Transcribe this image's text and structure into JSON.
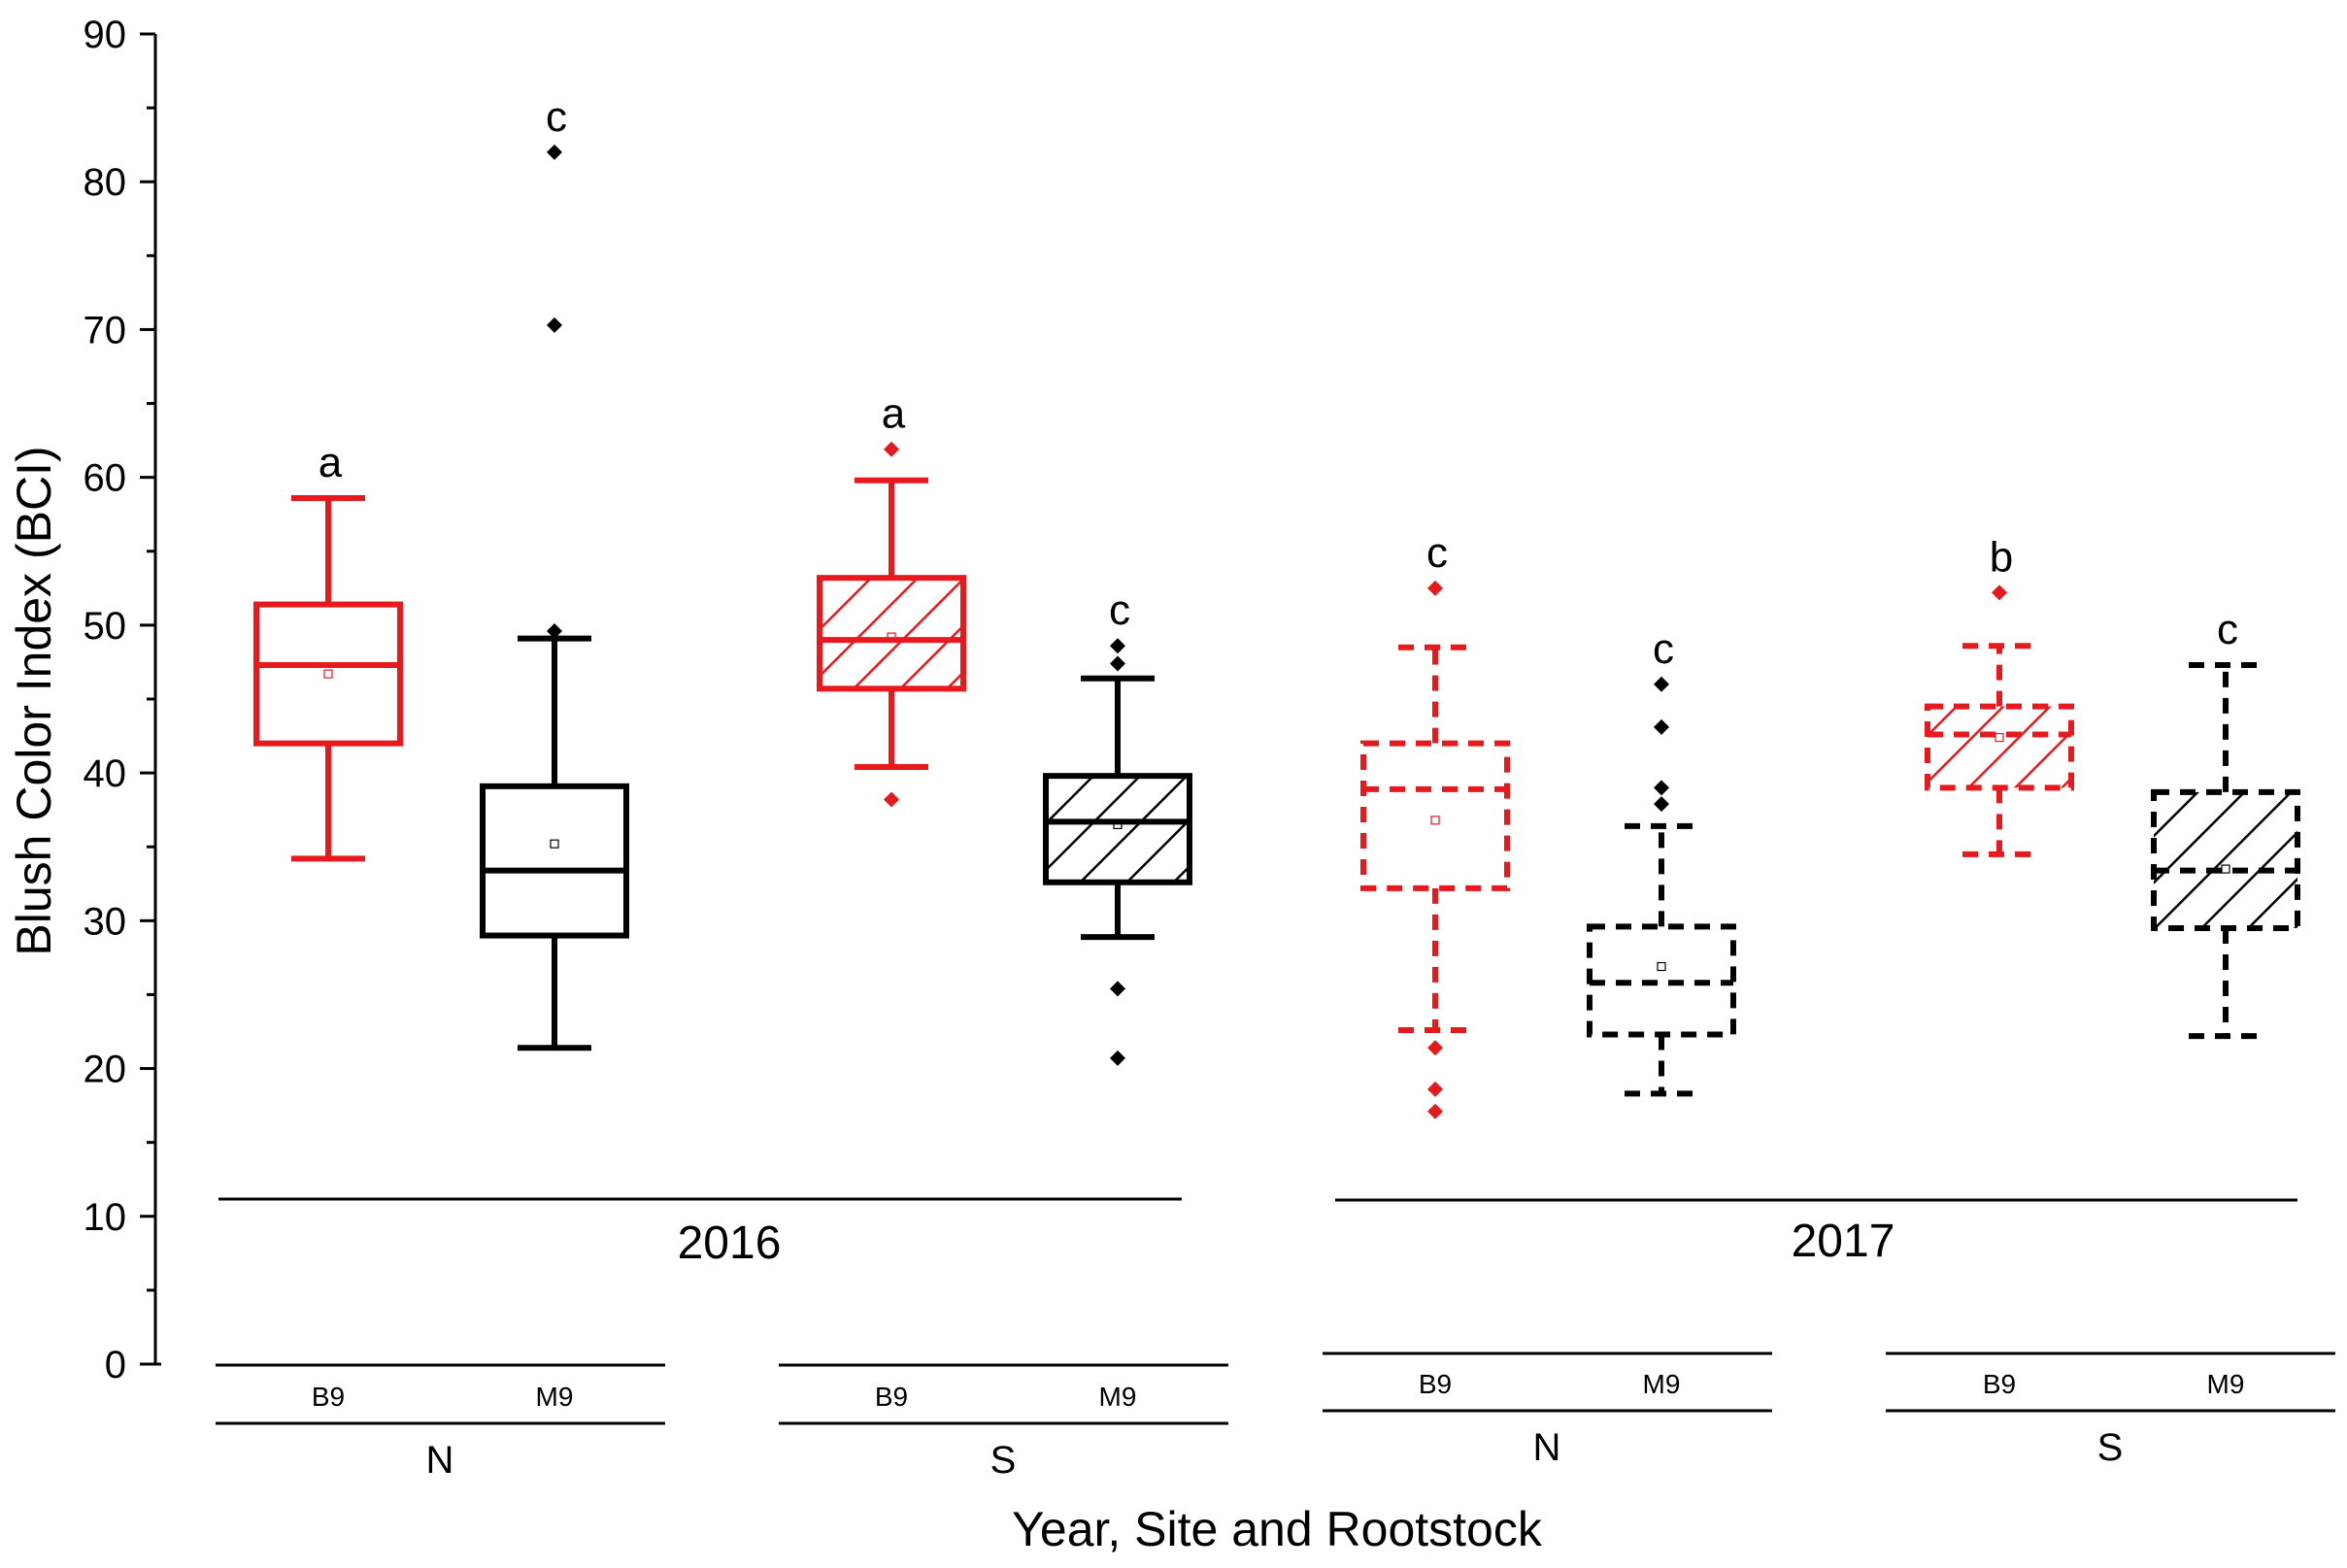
{
  "chart_data": {
    "type": "boxplot",
    "title": "",
    "xlabel": "Year, Site and Rootstock",
    "ylabel": "Blush Color Index (BCI)",
    "ylim": [
      0,
      90
    ],
    "yticks": [
      0,
      10,
      20,
      30,
      40,
      50,
      60,
      70,
      80,
      90
    ],
    "colors": {
      "B9": "#e8191c",
      "M9": "#000000"
    },
    "groups": [
      {
        "year": "2016",
        "site": "N",
        "rootstock": "B9",
        "color": "#e8191c",
        "hatched": false,
        "dashed": false,
        "letter": "a",
        "whisker_low": 34.2,
        "q1": 42.0,
        "median": 47.3,
        "mean": 46.7,
        "q3": 51.4,
        "whisker_high": 58.6,
        "outliers": []
      },
      {
        "year": "2016",
        "site": "N",
        "rootstock": "M9",
        "color": "#000000",
        "hatched": false,
        "dashed": false,
        "letter": "c",
        "whisker_low": 21.4,
        "q1": 29.0,
        "median": 33.4,
        "mean": 35.2,
        "q3": 39.1,
        "whisker_high": 49.1,
        "outliers": [
          49.6,
          70.3,
          82.0
        ]
      },
      {
        "year": "2016",
        "site": "S",
        "rootstock": "B9",
        "color": "#e8191c",
        "hatched": true,
        "dashed": false,
        "letter": "a",
        "whisker_low": 40.4,
        "q1": 45.7,
        "median": 49.0,
        "mean": 49.2,
        "q3": 53.2,
        "whisker_high": 59.8,
        "outliers": [
          38.2,
          61.9
        ]
      },
      {
        "year": "2016",
        "site": "S",
        "rootstock": "M9",
        "color": "#000000",
        "hatched": true,
        "dashed": false,
        "letter": "c",
        "whisker_low": 28.9,
        "q1": 32.6,
        "median": 36.7,
        "mean": 36.5,
        "q3": 39.8,
        "whisker_high": 46.4,
        "outliers": [
          20.7,
          25.4,
          47.4,
          48.6
        ]
      },
      {
        "year": "2017",
        "site": "N",
        "rootstock": "B9",
        "color": "#e8191c",
        "hatched": false,
        "dashed": true,
        "letter": "c",
        "whisker_low": 22.6,
        "q1": 32.2,
        "median": 38.9,
        "mean": 36.8,
        "q3": 42.0,
        "whisker_high": 48.5,
        "outliers": [
          17.1,
          18.6,
          21.4,
          52.5
        ]
      },
      {
        "year": "2017",
        "site": "N",
        "rootstock": "M9",
        "color": "#000000",
        "hatched": false,
        "dashed": true,
        "letter": "c",
        "whisker_low": 18.3,
        "q1": 22.3,
        "median": 25.8,
        "mean": 26.9,
        "q3": 29.6,
        "whisker_high": 36.4,
        "outliers": [
          37.9,
          39.0,
          43.1,
          46.0
        ]
      },
      {
        "year": "2017",
        "site": "S",
        "rootstock": "B9",
        "color": "#e8191c",
        "hatched": true,
        "dashed": true,
        "letter": "b",
        "whisker_low": 34.5,
        "q1": 39.0,
        "median": 42.6,
        "mean": 42.4,
        "q3": 44.5,
        "whisker_high": 48.6,
        "outliers": [
          52.2
        ]
      },
      {
        "year": "2017",
        "site": "S",
        "rootstock": "M9",
        "color": "#000000",
        "hatched": true,
        "dashed": true,
        "letter": "c",
        "whisker_low": 22.2,
        "q1": 29.5,
        "median": 33.4,
        "mean": 33.5,
        "q3": 38.7,
        "whisker_high": 47.3,
        "outliers": []
      }
    ],
    "x_tiers": {
      "rootstock_labels": [
        "B9",
        "M9",
        "B9",
        "M9",
        "B9",
        "M9",
        "B9",
        "M9"
      ],
      "site_labels": [
        "N",
        "S",
        "N",
        "S"
      ],
      "year_labels": [
        "2016",
        "2017"
      ]
    }
  }
}
